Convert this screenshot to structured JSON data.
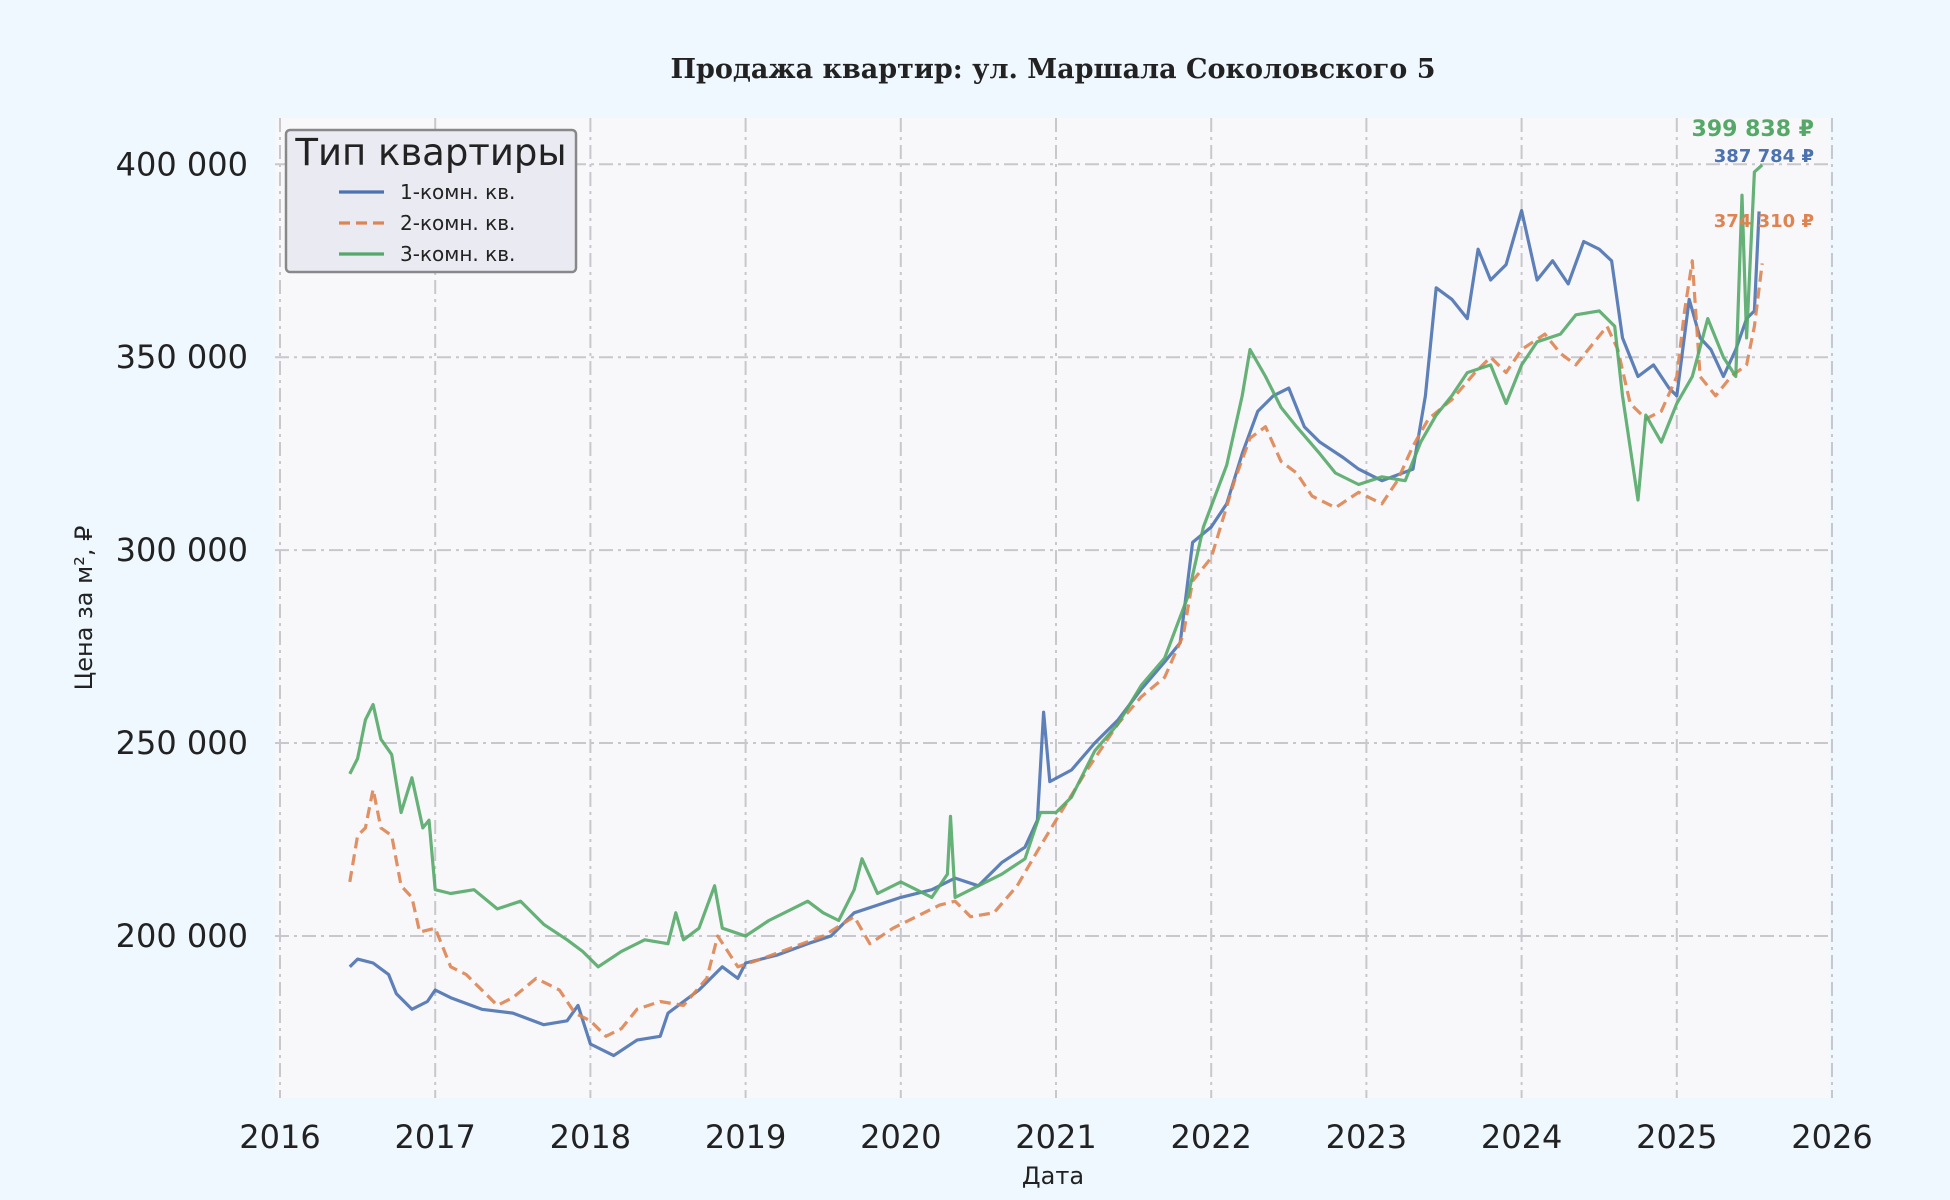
{
  "chart_data": {
    "type": "line",
    "title": "Продажа квартир: ул. Маршала Соколовского 5",
    "xlabel": "Дата",
    "ylabel": "Цена за м², ₽",
    "xlim": [
      2016,
      2026
    ],
    "ylim": [
      158000,
      412000
    ],
    "x_ticks": [
      "2016",
      "2017",
      "2018",
      "2019",
      "2020",
      "2021",
      "2022",
      "2023",
      "2024",
      "2025",
      "2026"
    ],
    "y_ticks": [
      "200 000",
      "250 000",
      "300 000",
      "350 000",
      "400 000"
    ],
    "grid": true,
    "legend": {
      "title": "Тип квартиры",
      "placement": "top-left"
    },
    "series": [
      {
        "name": "1-комн. кв.",
        "color": "#4c72b0",
        "dash": "solid",
        "end_label": "387 784 ₽",
        "points": [
          [
            2016.45,
            192000
          ],
          [
            2016.5,
            194000
          ],
          [
            2016.6,
            193000
          ],
          [
            2016.7,
            190000
          ],
          [
            2016.75,
            185000
          ],
          [
            2016.85,
            181000
          ],
          [
            2016.95,
            183000
          ],
          [
            2017.0,
            186000
          ],
          [
            2017.1,
            184000
          ],
          [
            2017.3,
            181000
          ],
          [
            2017.5,
            180000
          ],
          [
            2017.7,
            177000
          ],
          [
            2017.85,
            178000
          ],
          [
            2017.92,
            182000
          ],
          [
            2018.0,
            172000
          ],
          [
            2018.15,
            169000
          ],
          [
            2018.3,
            173000
          ],
          [
            2018.45,
            174000
          ],
          [
            2018.5,
            180000
          ],
          [
            2018.7,
            186000
          ],
          [
            2018.85,
            192000
          ],
          [
            2018.95,
            189000
          ],
          [
            2019.0,
            193000
          ],
          [
            2019.2,
            195000
          ],
          [
            2019.4,
            198000
          ],
          [
            2019.55,
            200000
          ],
          [
            2019.7,
            206000
          ],
          [
            2019.85,
            208000
          ],
          [
            2020.0,
            210000
          ],
          [
            2020.2,
            212000
          ],
          [
            2020.35,
            215000
          ],
          [
            2020.5,
            213000
          ],
          [
            2020.65,
            219000
          ],
          [
            2020.8,
            223000
          ],
          [
            2020.88,
            230000
          ],
          [
            2020.92,
            258000
          ],
          [
            2020.96,
            240000
          ],
          [
            2021.1,
            243000
          ],
          [
            2021.25,
            250000
          ],
          [
            2021.4,
            256000
          ],
          [
            2021.55,
            264000
          ],
          [
            2021.7,
            271000
          ],
          [
            2021.8,
            276000
          ],
          [
            2021.88,
            302000
          ],
          [
            2022.0,
            306000
          ],
          [
            2022.1,
            312000
          ],
          [
            2022.2,
            325000
          ],
          [
            2022.3,
            336000
          ],
          [
            2022.4,
            340000
          ],
          [
            2022.5,
            342000
          ],
          [
            2022.6,
            332000
          ],
          [
            2022.7,
            328000
          ],
          [
            2022.85,
            324000
          ],
          [
            2022.95,
            321000
          ],
          [
            2023.1,
            318000
          ],
          [
            2023.3,
            321000
          ],
          [
            2023.38,
            340000
          ],
          [
            2023.45,
            368000
          ],
          [
            2023.55,
            365000
          ],
          [
            2023.65,
            360000
          ],
          [
            2023.72,
            378000
          ],
          [
            2023.8,
            370000
          ],
          [
            2023.9,
            374000
          ],
          [
            2024.0,
            388000
          ],
          [
            2024.1,
            370000
          ],
          [
            2024.2,
            375000
          ],
          [
            2024.3,
            369000
          ],
          [
            2024.4,
            380000
          ],
          [
            2024.5,
            378000
          ],
          [
            2024.58,
            375000
          ],
          [
            2024.65,
            355000
          ],
          [
            2024.75,
            345000
          ],
          [
            2024.85,
            348000
          ],
          [
            2024.95,
            342000
          ],
          [
            2025.0,
            340000
          ],
          [
            2025.08,
            365000
          ],
          [
            2025.15,
            355000
          ],
          [
            2025.22,
            352000
          ],
          [
            2025.3,
            345000
          ],
          [
            2025.38,
            352000
          ],
          [
            2025.45,
            360000
          ],
          [
            2025.5,
            362000
          ],
          [
            2025.53,
            387784
          ]
        ]
      },
      {
        "name": "2-комн. кв.",
        "color": "#dd8452",
        "dash": "dashed",
        "end_label": "374 310 ₽",
        "points": [
          [
            2016.45,
            214000
          ],
          [
            2016.5,
            226000
          ],
          [
            2016.55,
            228000
          ],
          [
            2016.6,
            238000
          ],
          [
            2016.65,
            228000
          ],
          [
            2016.72,
            226000
          ],
          [
            2016.78,
            213000
          ],
          [
            2016.85,
            210000
          ],
          [
            2016.9,
            201000
          ],
          [
            2017.0,
            202000
          ],
          [
            2017.1,
            192000
          ],
          [
            2017.2,
            190000
          ],
          [
            2017.3,
            186000
          ],
          [
            2017.4,
            182000
          ],
          [
            2017.5,
            184000
          ],
          [
            2017.65,
            189000
          ],
          [
            2017.8,
            186000
          ],
          [
            2017.9,
            180000
          ],
          [
            2018.0,
            178000
          ],
          [
            2018.1,
            174000
          ],
          [
            2018.2,
            176000
          ],
          [
            2018.3,
            181000
          ],
          [
            2018.45,
            183000
          ],
          [
            2018.6,
            182000
          ],
          [
            2018.75,
            189000
          ],
          [
            2018.82,
            200000
          ],
          [
            2018.95,
            192000
          ],
          [
            2019.1,
            194000
          ],
          [
            2019.3,
            197000
          ],
          [
            2019.5,
            200000
          ],
          [
            2019.7,
            205000
          ],
          [
            2019.8,
            198000
          ],
          [
            2019.95,
            202000
          ],
          [
            2020.1,
            205000
          ],
          [
            2020.25,
            208000
          ],
          [
            2020.35,
            209000
          ],
          [
            2020.45,
            205000
          ],
          [
            2020.6,
            206000
          ],
          [
            2020.75,
            213000
          ],
          [
            2020.88,
            222000
          ],
          [
            2021.0,
            230000
          ],
          [
            2021.2,
            243000
          ],
          [
            2021.4,
            255000
          ],
          [
            2021.55,
            262000
          ],
          [
            2021.7,
            267000
          ],
          [
            2021.82,
            278000
          ],
          [
            2021.88,
            292000
          ],
          [
            2022.0,
            298000
          ],
          [
            2022.15,
            318000
          ],
          [
            2022.25,
            329000
          ],
          [
            2022.35,
            332000
          ],
          [
            2022.45,
            323000
          ],
          [
            2022.55,
            320000
          ],
          [
            2022.65,
            314000
          ],
          [
            2022.8,
            311000
          ],
          [
            2022.95,
            315000
          ],
          [
            2023.1,
            312000
          ],
          [
            2023.2,
            318000
          ],
          [
            2023.3,
            327000
          ],
          [
            2023.4,
            334000
          ],
          [
            2023.55,
            339000
          ],
          [
            2023.7,
            346000
          ],
          [
            2023.8,
            350000
          ],
          [
            2023.9,
            346000
          ],
          [
            2024.0,
            352000
          ],
          [
            2024.15,
            356000
          ],
          [
            2024.25,
            351000
          ],
          [
            2024.35,
            348000
          ],
          [
            2024.45,
            353000
          ],
          [
            2024.55,
            358000
          ],
          [
            2024.62,
            352000
          ],
          [
            2024.7,
            338000
          ],
          [
            2024.8,
            334000
          ],
          [
            2024.9,
            336000
          ],
          [
            2025.0,
            345000
          ],
          [
            2025.05,
            362000
          ],
          [
            2025.1,
            375000
          ],
          [
            2025.15,
            345000
          ],
          [
            2025.25,
            340000
          ],
          [
            2025.35,
            345000
          ],
          [
            2025.45,
            348000
          ],
          [
            2025.5,
            358000
          ],
          [
            2025.55,
            374310
          ]
        ]
      },
      {
        "name": "3-комн. кв.",
        "color": "#55a868",
        "dash": "solid",
        "end_label": "399 838 ₽",
        "points": [
          [
            2016.45,
            242000
          ],
          [
            2016.5,
            246000
          ],
          [
            2016.55,
            256000
          ],
          [
            2016.6,
            260000
          ],
          [
            2016.65,
            251000
          ],
          [
            2016.72,
            247000
          ],
          [
            2016.78,
            232000
          ],
          [
            2016.85,
            241000
          ],
          [
            2016.92,
            228000
          ],
          [
            2016.96,
            230000
          ],
          [
            2017.0,
            212000
          ],
          [
            2017.1,
            211000
          ],
          [
            2017.25,
            212000
          ],
          [
            2017.4,
            207000
          ],
          [
            2017.55,
            209000
          ],
          [
            2017.7,
            203000
          ],
          [
            2017.85,
            199000
          ],
          [
            2017.95,
            196000
          ],
          [
            2018.05,
            192000
          ],
          [
            2018.2,
            196000
          ],
          [
            2018.35,
            199000
          ],
          [
            2018.5,
            198000
          ],
          [
            2018.55,
            206000
          ],
          [
            2018.6,
            199000
          ],
          [
            2018.7,
            202000
          ],
          [
            2018.8,
            213000
          ],
          [
            2018.85,
            202000
          ],
          [
            2019.0,
            200000
          ],
          [
            2019.15,
            204000
          ],
          [
            2019.3,
            207000
          ],
          [
            2019.4,
            209000
          ],
          [
            2019.5,
            206000
          ],
          [
            2019.6,
            204000
          ],
          [
            2019.7,
            212000
          ],
          [
            2019.75,
            220000
          ],
          [
            2019.85,
            211000
          ],
          [
            2020.0,
            214000
          ],
          [
            2020.2,
            210000
          ],
          [
            2020.3,
            216000
          ],
          [
            2020.32,
            231000
          ],
          [
            2020.35,
            210000
          ],
          [
            2020.5,
            213000
          ],
          [
            2020.65,
            216000
          ],
          [
            2020.8,
            220000
          ],
          [
            2020.9,
            232000
          ],
          [
            2021.0,
            232000
          ],
          [
            2021.1,
            236000
          ],
          [
            2021.25,
            248000
          ],
          [
            2021.4,
            255000
          ],
          [
            2021.55,
            265000
          ],
          [
            2021.7,
            272000
          ],
          [
            2021.85,
            288000
          ],
          [
            2021.95,
            306000
          ],
          [
            2022.1,
            322000
          ],
          [
            2022.2,
            340000
          ],
          [
            2022.25,
            352000
          ],
          [
            2022.35,
            345000
          ],
          [
            2022.45,
            337000
          ],
          [
            2022.55,
            332000
          ],
          [
            2022.7,
            325000
          ],
          [
            2022.8,
            320000
          ],
          [
            2022.95,
            317000
          ],
          [
            2023.1,
            319000
          ],
          [
            2023.25,
            318000
          ],
          [
            2023.35,
            328000
          ],
          [
            2023.45,
            335000
          ],
          [
            2023.55,
            340000
          ],
          [
            2023.65,
            346000
          ],
          [
            2023.8,
            348000
          ],
          [
            2023.9,
            338000
          ],
          [
            2024.0,
            348000
          ],
          [
            2024.1,
            354000
          ],
          [
            2024.25,
            356000
          ],
          [
            2024.35,
            361000
          ],
          [
            2024.5,
            362000
          ],
          [
            2024.6,
            358000
          ],
          [
            2024.65,
            340000
          ],
          [
            2024.75,
            313000
          ],
          [
            2024.8,
            335000
          ],
          [
            2024.9,
            328000
          ],
          [
            2025.0,
            338000
          ],
          [
            2025.1,
            345000
          ],
          [
            2025.2,
            360000
          ],
          [
            2025.3,
            350000
          ],
          [
            2025.38,
            345000
          ],
          [
            2025.42,
            392000
          ],
          [
            2025.45,
            355000
          ],
          [
            2025.5,
            398000
          ],
          [
            2025.55,
            399838
          ]
        ]
      }
    ]
  }
}
